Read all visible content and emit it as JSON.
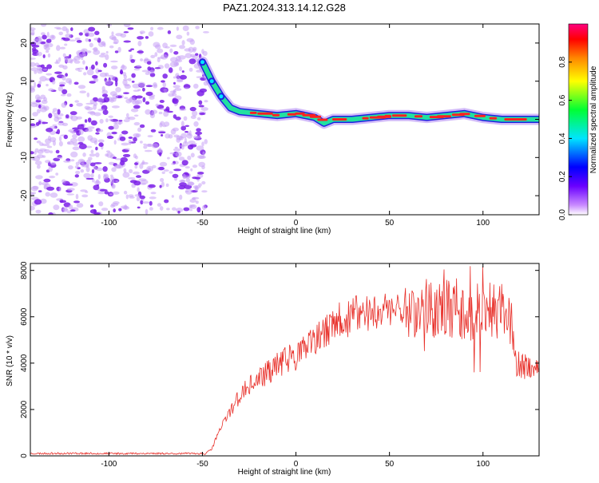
{
  "title": "PAZ1.2024.313.14.12.G28",
  "colors": {
    "snr_line": "#e8302a",
    "axis": "#000000",
    "noise": "#a855f7",
    "track_core": "#ff2020",
    "track_mid": "#22e0a0",
    "track_edge": "#2020e0"
  },
  "chart_data": [
    {
      "type": "heatmap",
      "title": "PAZ1.2024.313.14.12.G28",
      "xlabel": "Height of straight line (km)",
      "ylabel": "Frequency (Hz)",
      "xlim": [
        -142,
        130
      ],
      "ylim": [
        -25,
        25
      ],
      "xticks": [
        -100,
        -50,
        0,
        50,
        100
      ],
      "yticks": [
        -20,
        -10,
        0,
        10,
        20
      ],
      "colorbar": {
        "label": "Normalized spectral amplitude",
        "range": [
          0,
          1
        ],
        "ticks": [
          0.0,
          0.2,
          0.4,
          0.6,
          0.8
        ],
        "tick_labels": [
          "0.0",
          "0.2",
          "0.4",
          "0.6",
          "0.8"
        ],
        "colormap": "rainbow"
      },
      "signal_track": {
        "x": [
          -50,
          -45,
          -40,
          -35,
          -30,
          -20,
          -10,
          0,
          10,
          15,
          20,
          30,
          40,
          50,
          60,
          70,
          80,
          90,
          100,
          110,
          120,
          130
        ],
        "frequency": [
          15,
          10,
          6,
          3,
          2,
          1.5,
          1,
          1.5,
          0.5,
          -1,
          0,
          0,
          0.5,
          1,
          1,
          0.5,
          1,
          1.5,
          0.5,
          0,
          0,
          0
        ]
      },
      "noise_region_x": [
        -142,
        -50
      ],
      "grid": false
    },
    {
      "type": "line",
      "xlabel": "Height of straight line (km)",
      "ylabel": "SNR (10 * v/v)",
      "xlim": [
        -142,
        130
      ],
      "ylim": [
        0,
        8300
      ],
      "xticks": [
        -100,
        -50,
        0,
        50,
        100
      ],
      "yticks": [
        0,
        2000,
        4000,
        6000,
        8000
      ],
      "grid": false,
      "series": [
        {
          "x": [
            -142,
            -120,
            -100,
            -80,
            -60,
            -48,
            -45,
            -42,
            -38,
            -35,
            -30,
            -25,
            -20,
            -15,
            -10,
            -5,
            0,
            5,
            10,
            15,
            20,
            25,
            30,
            35,
            40,
            45,
            50,
            55,
            60,
            65,
            70,
            75,
            80,
            85,
            90,
            95,
            100,
            105,
            110,
            115,
            117,
            120,
            125,
            130
          ],
          "values": [
            100,
            110,
            100,
            105,
            100,
            100,
            300,
            900,
            1500,
            2000,
            2600,
            3000,
            3300,
            3600,
            3900,
            4200,
            4300,
            4600,
            4900,
            5300,
            5600,
            5900,
            6000,
            6200,
            6200,
            6300,
            6300,
            6400,
            6400,
            6200,
            6500,
            6100,
            6400,
            6200,
            6300,
            6100,
            6400,
            6200,
            6300,
            6200,
            4000,
            3900,
            3800,
            3800
          ]
        }
      ]
    }
  ]
}
